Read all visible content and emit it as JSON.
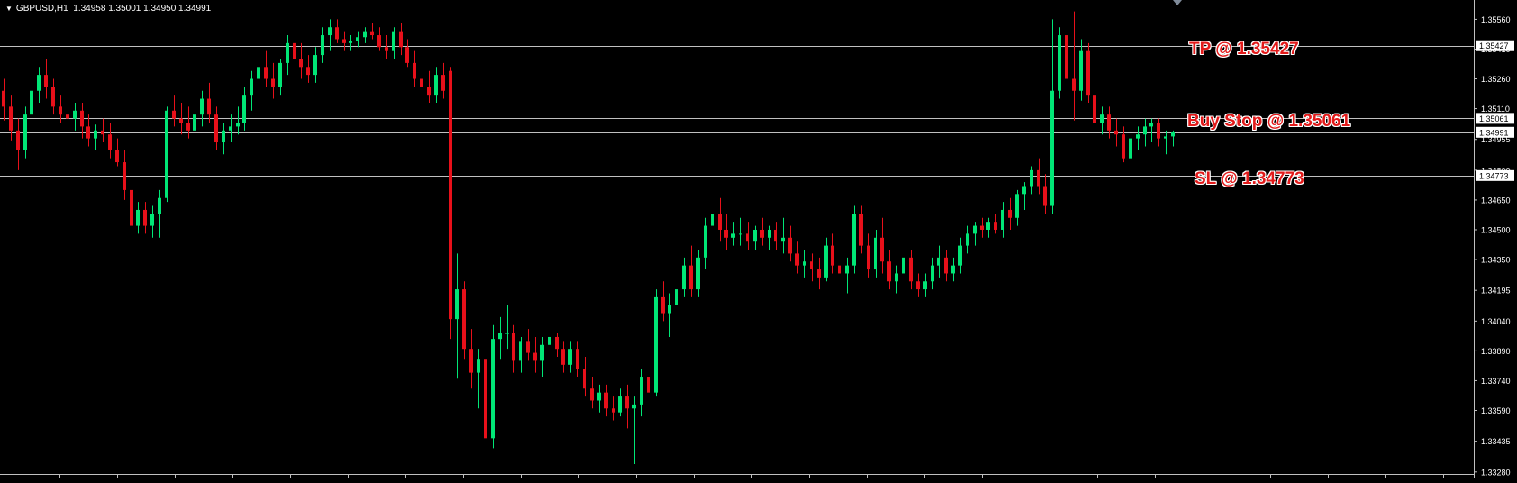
{
  "header": {
    "symbol": "GBPUSD,H1",
    "ohlc": "1.34958 1.35001 1.34950 1.34991"
  },
  "annotations": {
    "tp": "TP @ 1.35427",
    "buy_stop": "Buy Stop @ 1.35061",
    "sl": "SL @ 1.34773"
  },
  "colors": {
    "background": "#000000",
    "bull": "#00e676",
    "bear": "#e8101a",
    "wick_bull": "#00e676",
    "wick_bear": "#e8101a",
    "level_line": "#c0c0c0",
    "axis_text": "#ffffff",
    "annotation_text": "#e21a1a"
  },
  "chart_data": {
    "type": "candlestick",
    "symbol": "GBPUSD",
    "timeframe": "H1",
    "ylim": [
      1.3327,
      1.3563
    ],
    "price_ticks": [
      "1.35560",
      "1.35410",
      "1.35260",
      "1.35110",
      "1.34955",
      "1.34800",
      "1.34650",
      "1.34500",
      "1.34350",
      "1.34195",
      "1.34040",
      "1.33890",
      "1.33740",
      "1.33590",
      "1.33435",
      "1.33280"
    ],
    "level_labels": [
      {
        "name": "tp",
        "value": 1.35427,
        "label": "1.35427"
      },
      {
        "name": "buy-stop",
        "value": 1.35061,
        "label": "1.35061"
      },
      {
        "name": "current",
        "value": 1.34991,
        "label": "1.34991"
      },
      {
        "name": "sl",
        "value": 1.34773,
        "label": "1.34773"
      }
    ],
    "grid": false,
    "legend": "none",
    "candles": [
      [
        1.352,
        1.3526,
        1.3505,
        1.3512
      ],
      [
        1.3512,
        1.3518,
        1.3495,
        1.35
      ],
      [
        1.35,
        1.3506,
        1.348,
        1.349
      ],
      [
        1.349,
        1.3512,
        1.3486,
        1.3508
      ],
      [
        1.3508,
        1.3524,
        1.3502,
        1.352
      ],
      [
        1.352,
        1.3532,
        1.3514,
        1.3528
      ],
      [
        1.3528,
        1.3536,
        1.3516,
        1.3522
      ],
      [
        1.3522,
        1.3526,
        1.3508,
        1.3512
      ],
      [
        1.3512,
        1.3518,
        1.3504,
        1.3508
      ],
      [
        1.3508,
        1.3514,
        1.3502,
        1.3506
      ],
      [
        1.3506,
        1.3514,
        1.35,
        1.351
      ],
      [
        1.351,
        1.3514,
        1.3496,
        1.3502
      ],
      [
        1.3502,
        1.3508,
        1.3492,
        1.3496
      ],
      [
        1.3496,
        1.3503,
        1.349,
        1.35
      ],
      [
        1.35,
        1.3506,
        1.3494,
        1.3498
      ],
      [
        1.3498,
        1.3504,
        1.3486,
        1.349
      ],
      [
        1.349,
        1.3496,
        1.3482,
        1.3484
      ],
      [
        1.3484,
        1.349,
        1.3465,
        1.347
      ],
      [
        1.347,
        1.3474,
        1.3448,
        1.3452
      ],
      [
        1.3452,
        1.3464,
        1.3448,
        1.346
      ],
      [
        1.346,
        1.3464,
        1.3448,
        1.3452
      ],
      [
        1.3452,
        1.3462,
        1.3446,
        1.3458
      ],
      [
        1.3458,
        1.347,
        1.3446,
        1.3466
      ],
      [
        1.3466,
        1.3512,
        1.3464,
        1.351
      ],
      [
        1.351,
        1.3518,
        1.3502,
        1.3506
      ],
      [
        1.3506,
        1.3514,
        1.3498,
        1.3504
      ],
      [
        1.3504,
        1.3512,
        1.3496,
        1.35
      ],
      [
        1.35,
        1.3512,
        1.3494,
        1.3508
      ],
      [
        1.3508,
        1.352,
        1.3502,
        1.3516
      ],
      [
        1.3516,
        1.3524,
        1.3504,
        1.3508
      ],
      [
        1.3508,
        1.3512,
        1.349,
        1.3494
      ],
      [
        1.3494,
        1.3504,
        1.3488,
        1.35
      ],
      [
        1.35,
        1.3508,
        1.3494,
        1.3502
      ],
      [
        1.3502,
        1.3512,
        1.3498,
        1.3504
      ],
      [
        1.3504,
        1.3522,
        1.35,
        1.3518
      ],
      [
        1.3518,
        1.353,
        1.351,
        1.3526
      ],
      [
        1.3526,
        1.3536,
        1.352,
        1.3532
      ],
      [
        1.3532,
        1.354,
        1.3522,
        1.3526
      ],
      [
        1.3526,
        1.3534,
        1.3516,
        1.3522
      ],
      [
        1.3522,
        1.3536,
        1.3518,
        1.3534
      ],
      [
        1.3534,
        1.3548,
        1.3528,
        1.3544
      ],
      [
        1.3544,
        1.355,
        1.3532,
        1.3536
      ],
      [
        1.3536,
        1.3544,
        1.3526,
        1.3532
      ],
      [
        1.3532,
        1.3538,
        1.3524,
        1.3528
      ],
      [
        1.3528,
        1.3542,
        1.3524,
        1.3538
      ],
      [
        1.3538,
        1.3552,
        1.3534,
        1.3548
      ],
      [
        1.3548,
        1.3556,
        1.354,
        1.3552
      ],
      [
        1.3552,
        1.3556,
        1.3544,
        1.3546
      ],
      [
        1.3546,
        1.355,
        1.354,
        1.3544
      ],
      [
        1.3544,
        1.3548,
        1.354,
        1.3545
      ],
      [
        1.3545,
        1.355,
        1.3542,
        1.3547
      ],
      [
        1.3547,
        1.3552,
        1.3544,
        1.355
      ],
      [
        1.355,
        1.3554,
        1.3546,
        1.3548
      ],
      [
        1.3548,
        1.3552,
        1.354,
        1.3542
      ],
      [
        1.3542,
        1.3548,
        1.3536,
        1.354
      ],
      [
        1.354,
        1.3552,
        1.3536,
        1.355
      ],
      [
        1.355,
        1.3554,
        1.3538,
        1.3542
      ],
      [
        1.3542,
        1.3546,
        1.3532,
        1.3534
      ],
      [
        1.3534,
        1.354,
        1.3522,
        1.3526
      ],
      [
        1.3526,
        1.3532,
        1.3518,
        1.3522
      ],
      [
        1.3522,
        1.353,
        1.3514,
        1.3518
      ],
      [
        1.3518,
        1.3532,
        1.3514,
        1.3528
      ],
      [
        1.3528,
        1.3534,
        1.3516,
        1.352
      ],
      [
        1.353,
        1.3532,
        1.3395,
        1.3405
      ],
      [
        1.3405,
        1.3438,
        1.3375,
        1.342
      ],
      [
        1.342,
        1.3424,
        1.3385,
        1.339
      ],
      [
        1.339,
        1.34,
        1.337,
        1.3378
      ],
      [
        1.3378,
        1.339,
        1.336,
        1.3385
      ],
      [
        1.3385,
        1.3394,
        1.334,
        1.3345
      ],
      [
        1.3345,
        1.3402,
        1.334,
        1.3395
      ],
      [
        1.3395,
        1.3406,
        1.3385,
        1.3398
      ],
      [
        1.3398,
        1.3412,
        1.339,
        1.3398
      ],
      [
        1.3398,
        1.3402,
        1.3378,
        1.3384
      ],
      [
        1.3384,
        1.3396,
        1.3378,
        1.3394
      ],
      [
        1.3394,
        1.34,
        1.3384,
        1.3388
      ],
      [
        1.3388,
        1.3396,
        1.3378,
        1.3384
      ],
      [
        1.3384,
        1.3396,
        1.3376,
        1.3392
      ],
      [
        1.3392,
        1.34,
        1.3386,
        1.3396
      ],
      [
        1.3396,
        1.3398,
        1.3386,
        1.339
      ],
      [
        1.339,
        1.3394,
        1.3378,
        1.3382
      ],
      [
        1.3382,
        1.3394,
        1.3378,
        1.339
      ],
      [
        1.339,
        1.3394,
        1.3376,
        1.338
      ],
      [
        1.338,
        1.3386,
        1.3366,
        1.337
      ],
      [
        1.337,
        1.3376,
        1.336,
        1.3364
      ],
      [
        1.3364,
        1.3372,
        1.3358,
        1.3368
      ],
      [
        1.3368,
        1.3372,
        1.3356,
        1.336
      ],
      [
        1.336,
        1.3366,
        1.3354,
        1.3358
      ],
      [
        1.3358,
        1.337,
        1.3356,
        1.3366
      ],
      [
        1.3366,
        1.3372,
        1.335,
        1.336
      ],
      [
        1.336,
        1.3366,
        1.3332,
        1.3362
      ],
      [
        1.3362,
        1.338,
        1.3356,
        1.3376
      ],
      [
        1.3376,
        1.3386,
        1.3364,
        1.3368
      ],
      [
        1.3368,
        1.342,
        1.3366,
        1.3416
      ],
      [
        1.3416,
        1.3424,
        1.3404,
        1.3408
      ],
      [
        1.3408,
        1.3418,
        1.3396,
        1.3412
      ],
      [
        1.3412,
        1.3424,
        1.3404,
        1.342
      ],
      [
        1.342,
        1.3436,
        1.3416,
        1.3432
      ],
      [
        1.3432,
        1.3442,
        1.3416,
        1.342
      ],
      [
        1.342,
        1.344,
        1.3416,
        1.3436
      ],
      [
        1.3436,
        1.3456,
        1.343,
        1.3452
      ],
      [
        1.3452,
        1.3462,
        1.3446,
        1.3458
      ],
      [
        1.3458,
        1.3466,
        1.3444,
        1.345
      ],
      [
        1.345,
        1.3458,
        1.344,
        1.3446
      ],
      [
        1.3446,
        1.3454,
        1.3442,
        1.3448
      ],
      [
        1.3448,
        1.3456,
        1.3442,
        1.3448
      ],
      [
        1.3448,
        1.3454,
        1.344,
        1.3444
      ],
      [
        1.3444,
        1.3452,
        1.344,
        1.345
      ],
      [
        1.345,
        1.3456,
        1.3442,
        1.3446
      ],
      [
        1.3446,
        1.3452,
        1.344,
        1.345
      ],
      [
        1.345,
        1.3454,
        1.344,
        1.3444
      ],
      [
        1.3444,
        1.3456,
        1.3438,
        1.3446
      ],
      [
        1.3446,
        1.3452,
        1.3434,
        1.3438
      ],
      [
        1.3438,
        1.3444,
        1.3428,
        1.3432
      ],
      [
        1.3432,
        1.344,
        1.3426,
        1.3434
      ],
      [
        1.3434,
        1.3438,
        1.3424,
        1.343
      ],
      [
        1.343,
        1.3436,
        1.342,
        1.3426
      ],
      [
        1.3426,
        1.3446,
        1.3424,
        1.3442
      ],
      [
        1.3442,
        1.3448,
        1.3428,
        1.3432
      ],
      [
        1.3432,
        1.3436,
        1.342,
        1.3428
      ],
      [
        1.3428,
        1.3436,
        1.3418,
        1.3432
      ],
      [
        1.3432,
        1.3462,
        1.3428,
        1.3458
      ],
      [
        1.3458,
        1.3462,
        1.3438,
        1.3442
      ],
      [
        1.3442,
        1.3448,
        1.3426,
        1.343
      ],
      [
        1.343,
        1.345,
        1.3426,
        1.3446
      ],
      [
        1.3446,
        1.3456,
        1.3428,
        1.3434
      ],
      [
        1.3434,
        1.344,
        1.342,
        1.3424
      ],
      [
        1.3424,
        1.3432,
        1.3418,
        1.3428
      ],
      [
        1.3428,
        1.344,
        1.3424,
        1.3436
      ],
      [
        1.3436,
        1.344,
        1.342,
        1.3424
      ],
      [
        1.3424,
        1.3428,
        1.3416,
        1.342
      ],
      [
        1.342,
        1.3428,
        1.3416,
        1.3424
      ],
      [
        1.3424,
        1.3436,
        1.342,
        1.3432
      ],
      [
        1.3432,
        1.3442,
        1.3426,
        1.3436
      ],
      [
        1.3436,
        1.344,
        1.3424,
        1.3428
      ],
      [
        1.3428,
        1.3436,
        1.3424,
        1.3432
      ],
      [
        1.3432,
        1.3446,
        1.3428,
        1.3442
      ],
      [
        1.3442,
        1.3452,
        1.3438,
        1.3448
      ],
      [
        1.3448,
        1.3454,
        1.3442,
        1.3452
      ],
      [
        1.3452,
        1.3456,
        1.3446,
        1.345
      ],
      [
        1.345,
        1.3456,
        1.3446,
        1.3454
      ],
      [
        1.3454,
        1.3458,
        1.3448,
        1.345
      ],
      [
        1.345,
        1.3464,
        1.3446,
        1.346
      ],
      [
        1.346,
        1.3466,
        1.345,
        1.3456
      ],
      [
        1.3456,
        1.347,
        1.3452,
        1.3468
      ],
      [
        1.3468,
        1.3474,
        1.346,
        1.3472
      ],
      [
        1.3472,
        1.3482,
        1.3468,
        1.348
      ],
      [
        1.348,
        1.3486,
        1.3468,
        1.3472
      ],
      [
        1.3472,
        1.3478,
        1.3458,
        1.3462
      ],
      [
        1.3462,
        1.3556,
        1.3458,
        1.352
      ],
      [
        1.352,
        1.3552,
        1.3516,
        1.3548
      ],
      [
        1.3548,
        1.3554,
        1.352,
        1.3526
      ],
      [
        1.3526,
        1.356,
        1.3505,
        1.352
      ],
      [
        1.352,
        1.3546,
        1.3515,
        1.354
      ],
      [
        1.354,
        1.3544,
        1.3514,
        1.3518
      ],
      [
        1.3518,
        1.3522,
        1.35,
        1.3504
      ],
      [
        1.3504,
        1.3512,
        1.3498,
        1.3508
      ],
      [
        1.3508,
        1.3512,
        1.3496,
        1.35
      ],
      [
        1.35,
        1.3506,
        1.3492,
        1.3498
      ],
      [
        1.3498,
        1.3502,
        1.3484,
        1.3486
      ],
      [
        1.3486,
        1.35,
        1.3484,
        1.3496
      ],
      [
        1.3496,
        1.3502,
        1.349,
        1.3498
      ],
      [
        1.3498,
        1.3506,
        1.3492,
        1.3502
      ],
      [
        1.3502,
        1.3506,
        1.3494,
        1.3504
      ],
      [
        1.3504,
        1.3506,
        1.3492,
        1.3496
      ],
      [
        1.3496,
        1.35,
        1.3488,
        1.3497
      ],
      [
        1.3497,
        1.35,
        1.3492,
        1.3499
      ]
    ]
  }
}
